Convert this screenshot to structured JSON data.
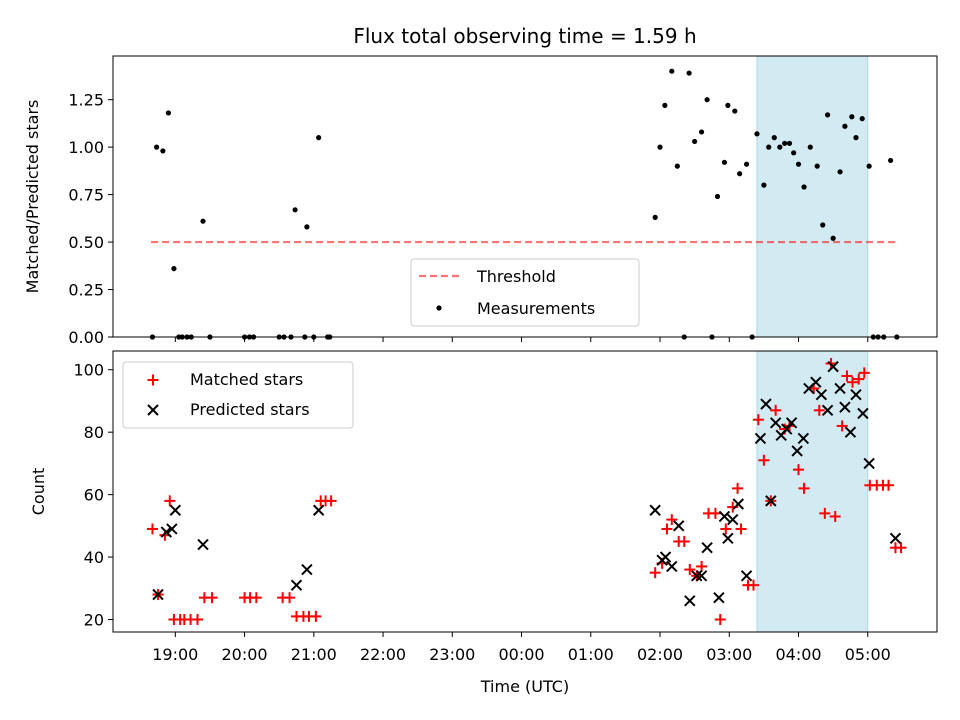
{
  "chart_data": {
    "title": "Flux total observing time = 1.59 h",
    "xlabel": "Time (UTC)",
    "x_units": "hours since 19:00 UTC (24 = next day 00:00)",
    "xlim": [
      -0.9,
      11.0
    ],
    "x_ticks": [
      {
        "value": 0,
        "label": "19:00"
      },
      {
        "value": 1,
        "label": "20:00"
      },
      {
        "value": 2,
        "label": "21:00"
      },
      {
        "value": 3,
        "label": "22:00"
      },
      {
        "value": 4,
        "label": "23:00"
      },
      {
        "value": 5,
        "label": "00:00"
      },
      {
        "value": 6,
        "label": "01:00"
      },
      {
        "value": 7,
        "label": "02:00"
      },
      {
        "value": 8,
        "label": "03:00"
      },
      {
        "value": 9,
        "label": "04:00"
      },
      {
        "value": 10,
        "label": "05:00"
      }
    ],
    "observing_window": {
      "start": 8.4,
      "end": 10.0,
      "color": "#add8e6"
    },
    "panels": [
      {
        "type": "scatter",
        "ylabel": "Matched/Predicted stars",
        "ylim": [
          0,
          1.48
        ],
        "y_ticks": [
          {
            "value": 0.0,
            "label": "0.00"
          },
          {
            "value": 0.25,
            "label": "0.25"
          },
          {
            "value": 0.5,
            "label": "0.50"
          },
          {
            "value": 0.75,
            "label": "0.75"
          },
          {
            "value": 1.0,
            "label": "1.00"
          },
          {
            "value": 1.25,
            "label": "1.25"
          }
        ],
        "threshold": {
          "name": "Threshold",
          "value": 0.5,
          "x_range": [
            -0.35,
            10.45
          ],
          "color": "#ff0000"
        },
        "legend": {
          "placement": "lower-center",
          "entries": [
            "Threshold",
            "Measurements"
          ]
        },
        "series": [
          {
            "name": "Measurements",
            "marker": "dot",
            "color": "#000000",
            "points": [
              [
                -0.33,
                0
              ],
              [
                -0.27,
                1.0
              ],
              [
                -0.18,
                0.98
              ],
              [
                -0.1,
                1.18
              ],
              [
                -0.02,
                0.36
              ],
              [
                0.05,
                0
              ],
              [
                0.1,
                0
              ],
              [
                0.17,
                0
              ],
              [
                0.23,
                0
              ],
              [
                0.4,
                0.61
              ],
              [
                0.5,
                0
              ],
              [
                1.0,
                0
              ],
              [
                1.07,
                0
              ],
              [
                1.13,
                0
              ],
              [
                1.5,
                0
              ],
              [
                1.57,
                0
              ],
              [
                1.67,
                0
              ],
              [
                1.73,
                0.67
              ],
              [
                1.87,
                0
              ],
              [
                1.9,
                0.58
              ],
              [
                2.0,
                0
              ],
              [
                2.07,
                1.05
              ],
              [
                2.2,
                0
              ],
              [
                2.23,
                0
              ],
              [
                6.93,
                0.63
              ],
              [
                7.0,
                1.0
              ],
              [
                7.07,
                1.22
              ],
              [
                7.17,
                1.4
              ],
              [
                7.25,
                0.9
              ],
              [
                7.35,
                0
              ],
              [
                7.42,
                1.39
              ],
              [
                7.5,
                1.03
              ],
              [
                7.6,
                1.08
              ],
              [
                7.68,
                1.25
              ],
              [
                7.75,
                0
              ],
              [
                7.83,
                0.74
              ],
              [
                7.93,
                0.92
              ],
              [
                7.98,
                1.22
              ],
              [
                8.08,
                1.19
              ],
              [
                8.15,
                0.86
              ],
              [
                8.25,
                0.91
              ],
              [
                8.33,
                0
              ],
              [
                8.4,
                1.07
              ],
              [
                8.5,
                0.8
              ],
              [
                8.57,
                1.0
              ],
              [
                8.65,
                1.05
              ],
              [
                8.73,
                1.0
              ],
              [
                8.8,
                1.02
              ],
              [
                8.87,
                1.02
              ],
              [
                8.93,
                0.97
              ],
              [
                9.0,
                0.91
              ],
              [
                9.08,
                0.79
              ],
              [
                9.17,
                1.0
              ],
              [
                9.27,
                0.9
              ],
              [
                9.35,
                0.59
              ],
              [
                9.42,
                1.17
              ],
              [
                9.5,
                0.52
              ],
              [
                9.6,
                0.87
              ],
              [
                9.67,
                1.11
              ],
              [
                9.77,
                1.16
              ],
              [
                9.83,
                1.05
              ],
              [
                9.92,
                1.15
              ],
              [
                10.02,
                0.9
              ],
              [
                10.08,
                0
              ],
              [
                10.15,
                0
              ],
              [
                10.23,
                0
              ],
              [
                10.33,
                0.93
              ],
              [
                10.42,
                0
              ]
            ]
          }
        ]
      },
      {
        "type": "scatter",
        "ylabel": "Count",
        "ylim": [
          16,
          106
        ],
        "y_ticks": [
          {
            "value": 20,
            "label": "20"
          },
          {
            "value": 40,
            "label": "40"
          },
          {
            "value": 60,
            "label": "60"
          },
          {
            "value": 80,
            "label": "80"
          },
          {
            "value": 100,
            "label": "100"
          }
        ],
        "legend": {
          "placement": "upper-left",
          "entries": [
            "Matched stars",
            "Predicted stars"
          ]
        },
        "series": [
          {
            "name": "Matched stars",
            "marker": "plus",
            "color": "#ff0000",
            "points": [
              [
                -0.33,
                49
              ],
              [
                -0.25,
                28
              ],
              [
                -0.15,
                47
              ],
              [
                -0.08,
                58
              ],
              [
                -0.02,
                20
              ],
              [
                0.07,
                20
              ],
              [
                0.13,
                20
              ],
              [
                0.22,
                20
              ],
              [
                0.32,
                20
              ],
              [
                0.42,
                27
              ],
              [
                0.53,
                27
              ],
              [
                1.0,
                27
              ],
              [
                1.08,
                27
              ],
              [
                1.17,
                27
              ],
              [
                1.55,
                27
              ],
              [
                1.65,
                27
              ],
              [
                1.75,
                21
              ],
              [
                1.85,
                21
              ],
              [
                1.93,
                21
              ],
              [
                2.03,
                21
              ],
              [
                2.1,
                58
              ],
              [
                2.17,
                58
              ],
              [
                2.25,
                58
              ],
              [
                6.93,
                35
              ],
              [
                7.03,
                38
              ],
              [
                7.1,
                49
              ],
              [
                7.17,
                52
              ],
              [
                7.27,
                45
              ],
              [
                7.35,
                45
              ],
              [
                7.43,
                36
              ],
              [
                7.53,
                34
              ],
              [
                7.6,
                37
              ],
              [
                7.7,
                54
              ],
              [
                7.8,
                54
              ],
              [
                7.87,
                20
              ],
              [
                7.95,
                49
              ],
              [
                8.05,
                56
              ],
              [
                8.12,
                62
              ],
              [
                8.17,
                49
              ],
              [
                8.27,
                31
              ],
              [
                8.35,
                31
              ],
              [
                8.42,
                84
              ],
              [
                8.5,
                71
              ],
              [
                8.6,
                58
              ],
              [
                8.67,
                87
              ],
              [
                8.8,
                81
              ],
              [
                8.87,
                82
              ],
              [
                9.0,
                68
              ],
              [
                9.08,
                62
              ],
              [
                9.22,
                94
              ],
              [
                9.3,
                87
              ],
              [
                9.38,
                54
              ],
              [
                9.47,
                102
              ],
              [
                9.53,
                53
              ],
              [
                9.63,
                82
              ],
              [
                9.7,
                98
              ],
              [
                9.78,
                96
              ],
              [
                9.87,
                97
              ],
              [
                9.95,
                99
              ],
              [
                10.03,
                63
              ],
              [
                10.13,
                63
              ],
              [
                10.22,
                63
              ],
              [
                10.3,
                63
              ],
              [
                10.4,
                43
              ],
              [
                10.48,
                43
              ]
            ]
          },
          {
            "name": "Predicted stars",
            "marker": "x",
            "color": "#000000",
            "points": [
              [
                -0.25,
                28
              ],
              [
                -0.13,
                48
              ],
              [
                -0.05,
                49
              ],
              [
                0.0,
                55
              ],
              [
                0.4,
                44
              ],
              [
                1.75,
                31
              ],
              [
                1.9,
                36
              ],
              [
                2.07,
                55
              ],
              [
                6.93,
                55
              ],
              [
                7.03,
                39
              ],
              [
                7.08,
                40
              ],
              [
                7.17,
                37
              ],
              [
                7.27,
                50
              ],
              [
                7.43,
                26
              ],
              [
                7.53,
                34
              ],
              [
                7.6,
                34
              ],
              [
                7.68,
                43
              ],
              [
                7.85,
                27
              ],
              [
                7.93,
                53
              ],
              [
                7.98,
                46
              ],
              [
                8.05,
                52
              ],
              [
                8.13,
                57
              ],
              [
                8.25,
                34
              ],
              [
                8.45,
                78
              ],
              [
                8.53,
                89
              ],
              [
                8.6,
                58
              ],
              [
                8.67,
                83
              ],
              [
                8.75,
                79
              ],
              [
                8.83,
                81
              ],
              [
                8.9,
                83
              ],
              [
                8.98,
                74
              ],
              [
                9.07,
                78
              ],
              [
                9.15,
                94
              ],
              [
                9.25,
                96
              ],
              [
                9.33,
                92
              ],
              [
                9.42,
                87
              ],
              [
                9.5,
                101
              ],
              [
                9.6,
                94
              ],
              [
                9.67,
                88
              ],
              [
                9.75,
                80
              ],
              [
                9.83,
                92
              ],
              [
                9.93,
                86
              ],
              [
                10.02,
                70
              ],
              [
                10.4,
                46
              ]
            ]
          }
        ]
      }
    ]
  }
}
